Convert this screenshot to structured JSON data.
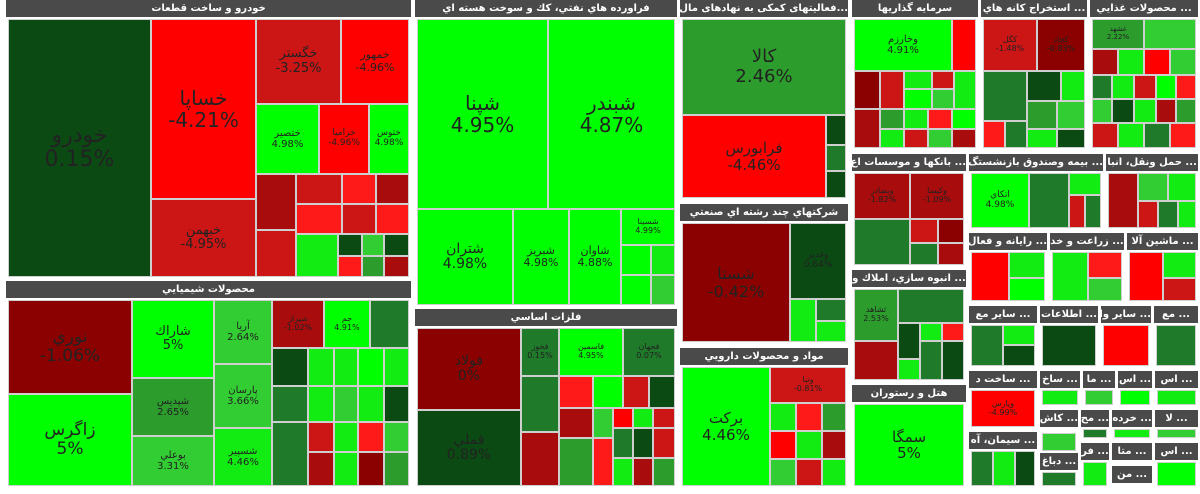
{
  "sectors": {
    "auto": {
      "title": "خودرو و ساخت قطعات"
    },
    "refinery": {
      "title": "فراورده هاي نفتي، كك و سوخت هسته اي"
    },
    "finance": {
      "title": "...فعالیتهای کمکی به نهادهای مال"
    },
    "investment": {
      "title": "سرمايه گذاريها"
    },
    "mining": {
      "title": "... استخراج كانه هاي"
    },
    "food": {
      "title": "... محصولات غذايي"
    },
    "chemical": {
      "title": "محصولات شيميايي"
    },
    "metals": {
      "title": "فلزات اساسي"
    },
    "multi": {
      "title": "شركتهاي چند رشته اي صنعتي"
    },
    "pharma": {
      "title": "مواد و محصولات دارويي"
    },
    "banks": {
      "title": "... بانكها و موسسات اع"
    },
    "insurance": {
      "title": "... بيمه وصندوق بازنشستگ"
    },
    "transport": {
      "title": "... حمل ونقل، انبا"
    },
    "realestate": {
      "title": "... انبوه سازي، املاك و"
    },
    "hotel": {
      "title": "هتل و رستوران"
    },
    "telecom": {
      "title": "... رايانه و فعال"
    },
    "agri": {
      "title": "... زراعت و خد"
    },
    "machinery": {
      "title": "... ماشين آلا"
    },
    "othermining": {
      "title": "... ساير مع"
    },
    "info": {
      "title": "... اطلاعات"
    },
    "othernonmet": {
      "title": "... ساير وا"
    },
    "small1": {
      "title": "... مع"
    },
    "build": {
      "title": "... ساخت د"
    },
    "sakh": {
      "title": "... ساخ"
    },
    "ma": {
      "title": "... ما"
    },
    "as1": {
      "title": "... اس"
    },
    "as2": {
      "title": "... اس"
    },
    "mah": {
      "title": "... مح"
    },
    "kharde": {
      "title": "... خرده"
    },
    "la": {
      "title": "... لا"
    },
    "kashi": {
      "title": "... كاش"
    },
    "cement": {
      "title": "... سيمان، آه"
    },
    "dabagh": {
      "title": "... دباغ"
    },
    "fa": {
      "title": "... فر"
    },
    "mata": {
      "title": "... متا"
    },
    "as3": {
      "title": "... اس"
    },
    "mn": {
      "title": "... من"
    }
  },
  "tiles": {
    "khodro": {
      "name": "خودرو",
      "pct": "0.15%"
    },
    "khsapa": {
      "name": "خساپا",
      "pct": "-4.21%"
    },
    "khgostar": {
      "name": "خگستر",
      "pct": "-3.25%"
    },
    "khmehvar": {
      "name": "خمهور",
      "pct": "-4.96%"
    },
    "khbahman": {
      "name": "خبهمن",
      "pct": "-4.95%"
    },
    "khtesir": {
      "name": "ختصير",
      "pct": "4.98%"
    },
    "khzamia": {
      "name": "خزاميا",
      "pct": "-4.96%"
    },
    "khtoos": {
      "name": "ختوس",
      "pct": "4.98%"
    },
    "shepna": {
      "name": "شپنا",
      "pct": "4.95%"
    },
    "shebandar": {
      "name": "شبندر",
      "pct": "4.87%"
    },
    "shetran": {
      "name": "شتران",
      "pct": "4.98%"
    },
    "shebriz": {
      "name": "شبريز",
      "pct": "4.98%"
    },
    "shavan": {
      "name": "شاوان",
      "pct": "4.88%"
    },
    "shesina": {
      "name": "شسينا",
      "pct": "4.99%"
    },
    "kala": {
      "name": "كالا",
      "pct": "2.46%"
    },
    "faraboors": {
      "name": "فرابورس",
      "pct": "-4.46%"
    },
    "vkharazm": {
      "name": "وخارزم",
      "pct": "4.91%"
    },
    "kagol": {
      "name": "كگل",
      "pct": "-1.48%"
    },
    "kchad": {
      "name": "كچاد",
      "pct": "-0.83%"
    },
    "ghashahd": {
      "name": "غشهد",
      "pct": "2.22%"
    },
    "nouri": {
      "name": "نوري",
      "pct": "-1.06%"
    },
    "sharak": {
      "name": "شاراك",
      "pct": "5%"
    },
    "aria": {
      "name": "آريا",
      "pct": "2.64%"
    },
    "shiraz": {
      "name": "شيراز",
      "pct": "-1.02%"
    },
    "jam": {
      "name": "جم",
      "pct": "4.91%"
    },
    "zagros": {
      "name": "زاگرس",
      "pct": "5%"
    },
    "shepdis": {
      "name": "شپديس",
      "pct": "2.65%"
    },
    "pars": {
      "name": "پارسان",
      "pct": "3.66%"
    },
    "booali": {
      "name": "بوعلي",
      "pct": "3.31%"
    },
    "shesepir": {
      "name": "شسپير",
      "pct": "4.46%"
    },
    "foolad": {
      "name": "فولاد",
      "pct": "0%"
    },
    "fameli": {
      "name": "فملي",
      "pct": "0.89%"
    },
    "fkhooz": {
      "name": "فخوز",
      "pct": "0.15%"
    },
    "fasmin": {
      "name": "فاسمين",
      "pct": "4.95%"
    },
    "fajhan": {
      "name": "فجهان",
      "pct": "0.07%"
    },
    "shesta": {
      "name": "شستا",
      "pct": "-0.42%"
    },
    "vghadir": {
      "name": "وغدير",
      "pct": "0.64%"
    },
    "barkat": {
      "name": "بركت",
      "pct": "4.46%"
    },
    "dtaba": {
      "name": "وتبا",
      "pct": "-0.81%"
    },
    "atkai": {
      "name": "اتكاي",
      "pct": "4.98%"
    },
    "shakhes": {
      "name": "ثشاهد",
      "pct": "2.53%"
    },
    "hfars": {
      "name": "وپارس",
      "pct": "-4.99%"
    },
    "semga": {
      "name": "سمگا",
      "pct": "5%"
    },
    "vbsader": {
      "name": "وبصادر",
      "pct": "-1.82%"
    },
    "kisa": {
      "name": "وكيسا",
      "pct": "-1.09%"
    }
  }
}
